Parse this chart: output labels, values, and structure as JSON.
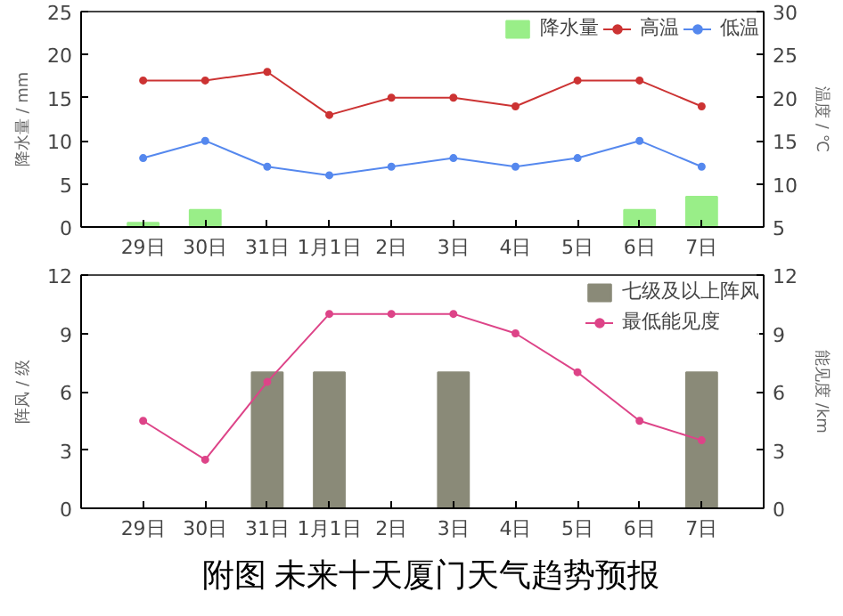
{
  "chart_data": [
    {
      "type": "bar",
      "categories": [
        "29日",
        "30日",
        "31日",
        "1月1日",
        "2日",
        "3日",
        "4日",
        "5日",
        "6日",
        "7日"
      ],
      "ylabel": "降水量 / mm",
      "y2label": "温度 / ℃",
      "ylim": [
        0,
        25
      ],
      "yticks": [
        0,
        5,
        10,
        15,
        20,
        25
      ],
      "y2lim": [
        5,
        30
      ],
      "y2ticks": [
        5,
        10,
        15,
        20,
        25,
        30
      ],
      "legend": "top right",
      "grid": false,
      "series": [
        {
          "name": "降水量",
          "color": "#99ee88",
          "values": [
            0.5,
            2,
            null,
            null,
            null,
            null,
            null,
            null,
            2,
            3.5
          ]
        },
        {
          "name": "高温",
          "type": "line",
          "color": "#cc3333",
          "marker": "circle",
          "axis": "y2",
          "values": [
            22,
            22,
            23,
            18,
            20,
            20,
            19,
            22,
            22,
            19
          ]
        },
        {
          "name": "低温",
          "type": "line",
          "color": "#5588ee",
          "marker": "circle",
          "axis": "y2",
          "values": [
            13,
            15,
            12,
            11,
            12,
            13,
            12,
            13,
            15,
            12
          ]
        }
      ]
    },
    {
      "type": "bar",
      "categories": [
        "29日",
        "30日",
        "31日",
        "1月1日",
        "2日",
        "3日",
        "4日",
        "5日",
        "6日",
        "7日"
      ],
      "ylabel": "阵风 / 级",
      "y2label": "能见度 /km",
      "ylim": [
        0,
        12
      ],
      "yticks": [
        0,
        3,
        6,
        9,
        12
      ],
      "y2lim": [
        0,
        12
      ],
      "y2ticks": [
        0,
        3,
        6,
        9,
        12
      ],
      "legend": "top right",
      "grid": false,
      "annotations": [
        "附图  未来十天厦门天气趋势预报"
      ],
      "series": [
        {
          "name": "七级及以上阵风",
          "color": "#8a8a78",
          "values": [
            null,
            null,
            7,
            7,
            null,
            7,
            null,
            null,
            null,
            7
          ]
        },
        {
          "name": "最低能见度",
          "type": "line",
          "color": "#dd4488",
          "marker": "circle",
          "axis": "y2",
          "values": [
            4.5,
            2.5,
            6.5,
            10,
            10,
            10,
            9,
            7,
            4.5,
            3.5
          ]
        }
      ]
    }
  ]
}
